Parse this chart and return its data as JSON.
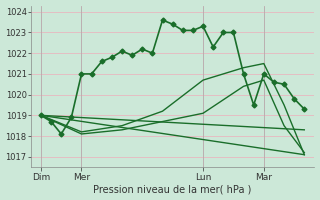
{
  "background_color": "#cce8d8",
  "grid_color": "#e8b8c0",
  "line_color": "#1a6e2a",
  "title": "Pression niveau de la mer( hPa )",
  "ylim": [
    1016.5,
    1024.3
  ],
  "yticks": [
    1017,
    1018,
    1019,
    1020,
    1021,
    1022,
    1023,
    1024
  ],
  "day_labels": [
    "Dim",
    "Mer",
    "Lun",
    "Mar"
  ],
  "day_positions": [
    0,
    4,
    16,
    22
  ],
  "xlim": [
    -1,
    27
  ],
  "vlines": [
    0,
    4,
    16,
    22
  ],
  "lines": [
    {
      "x": [
        0,
        1,
        2,
        3,
        4,
        5,
        6,
        7,
        8,
        9,
        10,
        11,
        12,
        13,
        14,
        15,
        16,
        17,
        18,
        19,
        20,
        21,
        22,
        23,
        24,
        25,
        26
      ],
      "y": [
        1019.0,
        1018.7,
        1018.1,
        1018.9,
        1021.0,
        1021.0,
        1021.6,
        1021.8,
        1022.1,
        1021.9,
        1022.2,
        1022.0,
        1023.6,
        1023.4,
        1023.1,
        1023.1,
        1023.3,
        1022.3,
        1023.0,
        1023.0,
        1021.0,
        1019.5,
        1021.0,
        1020.6,
        1020.5,
        1019.8,
        1019.3
      ],
      "marker": "D",
      "ms": 2.5,
      "lw": 1.2
    },
    {
      "x": [
        0,
        4,
        8,
        12,
        16,
        20,
        22,
        24,
        26
      ],
      "y": [
        1019.0,
        1018.2,
        1018.5,
        1019.2,
        1020.7,
        1021.3,
        1021.5,
        1019.5,
        1017.1
      ],
      "marker": null,
      "ms": 0,
      "lw": 1.0
    },
    {
      "x": [
        0,
        4,
        8,
        12,
        16,
        20,
        22,
        24,
        26
      ],
      "y": [
        1019.0,
        1018.1,
        1018.3,
        1018.7,
        1019.1,
        1020.4,
        1020.7,
        1018.5,
        1017.2
      ],
      "marker": null,
      "ms": 0,
      "lw": 1.0
    },
    {
      "x": [
        0,
        26
      ],
      "y": [
        1019.0,
        1017.1
      ],
      "marker": null,
      "ms": 0,
      "lw": 1.0
    },
    {
      "x": [
        0,
        26
      ],
      "y": [
        1019.0,
        1018.3
      ],
      "marker": null,
      "ms": 0,
      "lw": 1.0
    }
  ]
}
